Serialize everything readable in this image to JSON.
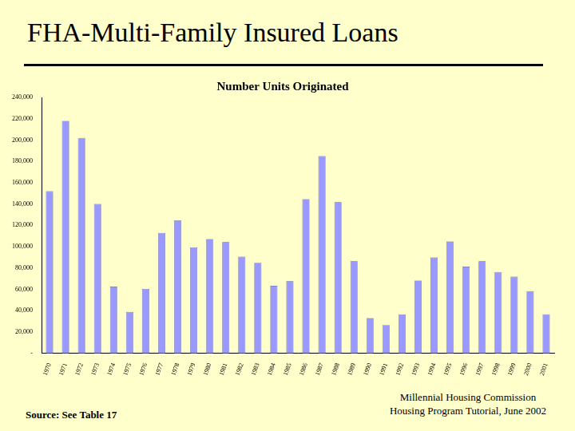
{
  "heading": "FHA-Multi-Family Insured Loans",
  "source": "Source: See Table 17",
  "footer": [
    "Millennial Housing Commission",
    "Housing Program Tutorial, June 2002"
  ],
  "chart_data": {
    "type": "bar",
    "title": "Number Units Originated",
    "categories": [
      "1970",
      "1971",
      "1972",
      "1973",
      "1974",
      "1975",
      "1976",
      "1977",
      "1978",
      "1979",
      "1980",
      "1981",
      "1982",
      "1983",
      "1984",
      "1985",
      "1986",
      "1987",
      "1988",
      "1989",
      "1990",
      "1991",
      "1992",
      "1993",
      "1994",
      "1995",
      "1996",
      "1997",
      "1998",
      "1999",
      "2000",
      "2001"
    ],
    "values": [
      152000,
      218000,
      202000,
      140000,
      62600,
      38800,
      60400,
      113000,
      124500,
      99300,
      107200,
      104300,
      90600,
      84900,
      63300,
      67600,
      144600,
      184900,
      141700,
      86300,
      33100,
      26600,
      36700,
      68300,
      89900,
      105000,
      81300,
      86300,
      76300,
      71900,
      58300,
      36700
    ],
    "color": "#9999ff",
    "ylim": [
      0,
      240000
    ],
    "yticks": [
      {
        "value": 0,
        "label": "-"
      },
      {
        "value": 20000,
        "label": "20,000"
      },
      {
        "value": 40000,
        "label": "40,000"
      },
      {
        "value": 60000,
        "label": "60,000"
      },
      {
        "value": 80000,
        "label": "80,000"
      },
      {
        "value": 100000,
        "label": "100,000"
      },
      {
        "value": 120000,
        "label": "120,000"
      },
      {
        "value": 140000,
        "label": "140,000"
      },
      {
        "value": 160000,
        "label": "160,000"
      },
      {
        "value": 180000,
        "label": "180,000"
      },
      {
        "value": 200000,
        "label": "200,000"
      },
      {
        "value": 220000,
        "label": "220,000"
      },
      {
        "value": 240000,
        "label": "240,000"
      }
    ],
    "grid": false
  }
}
